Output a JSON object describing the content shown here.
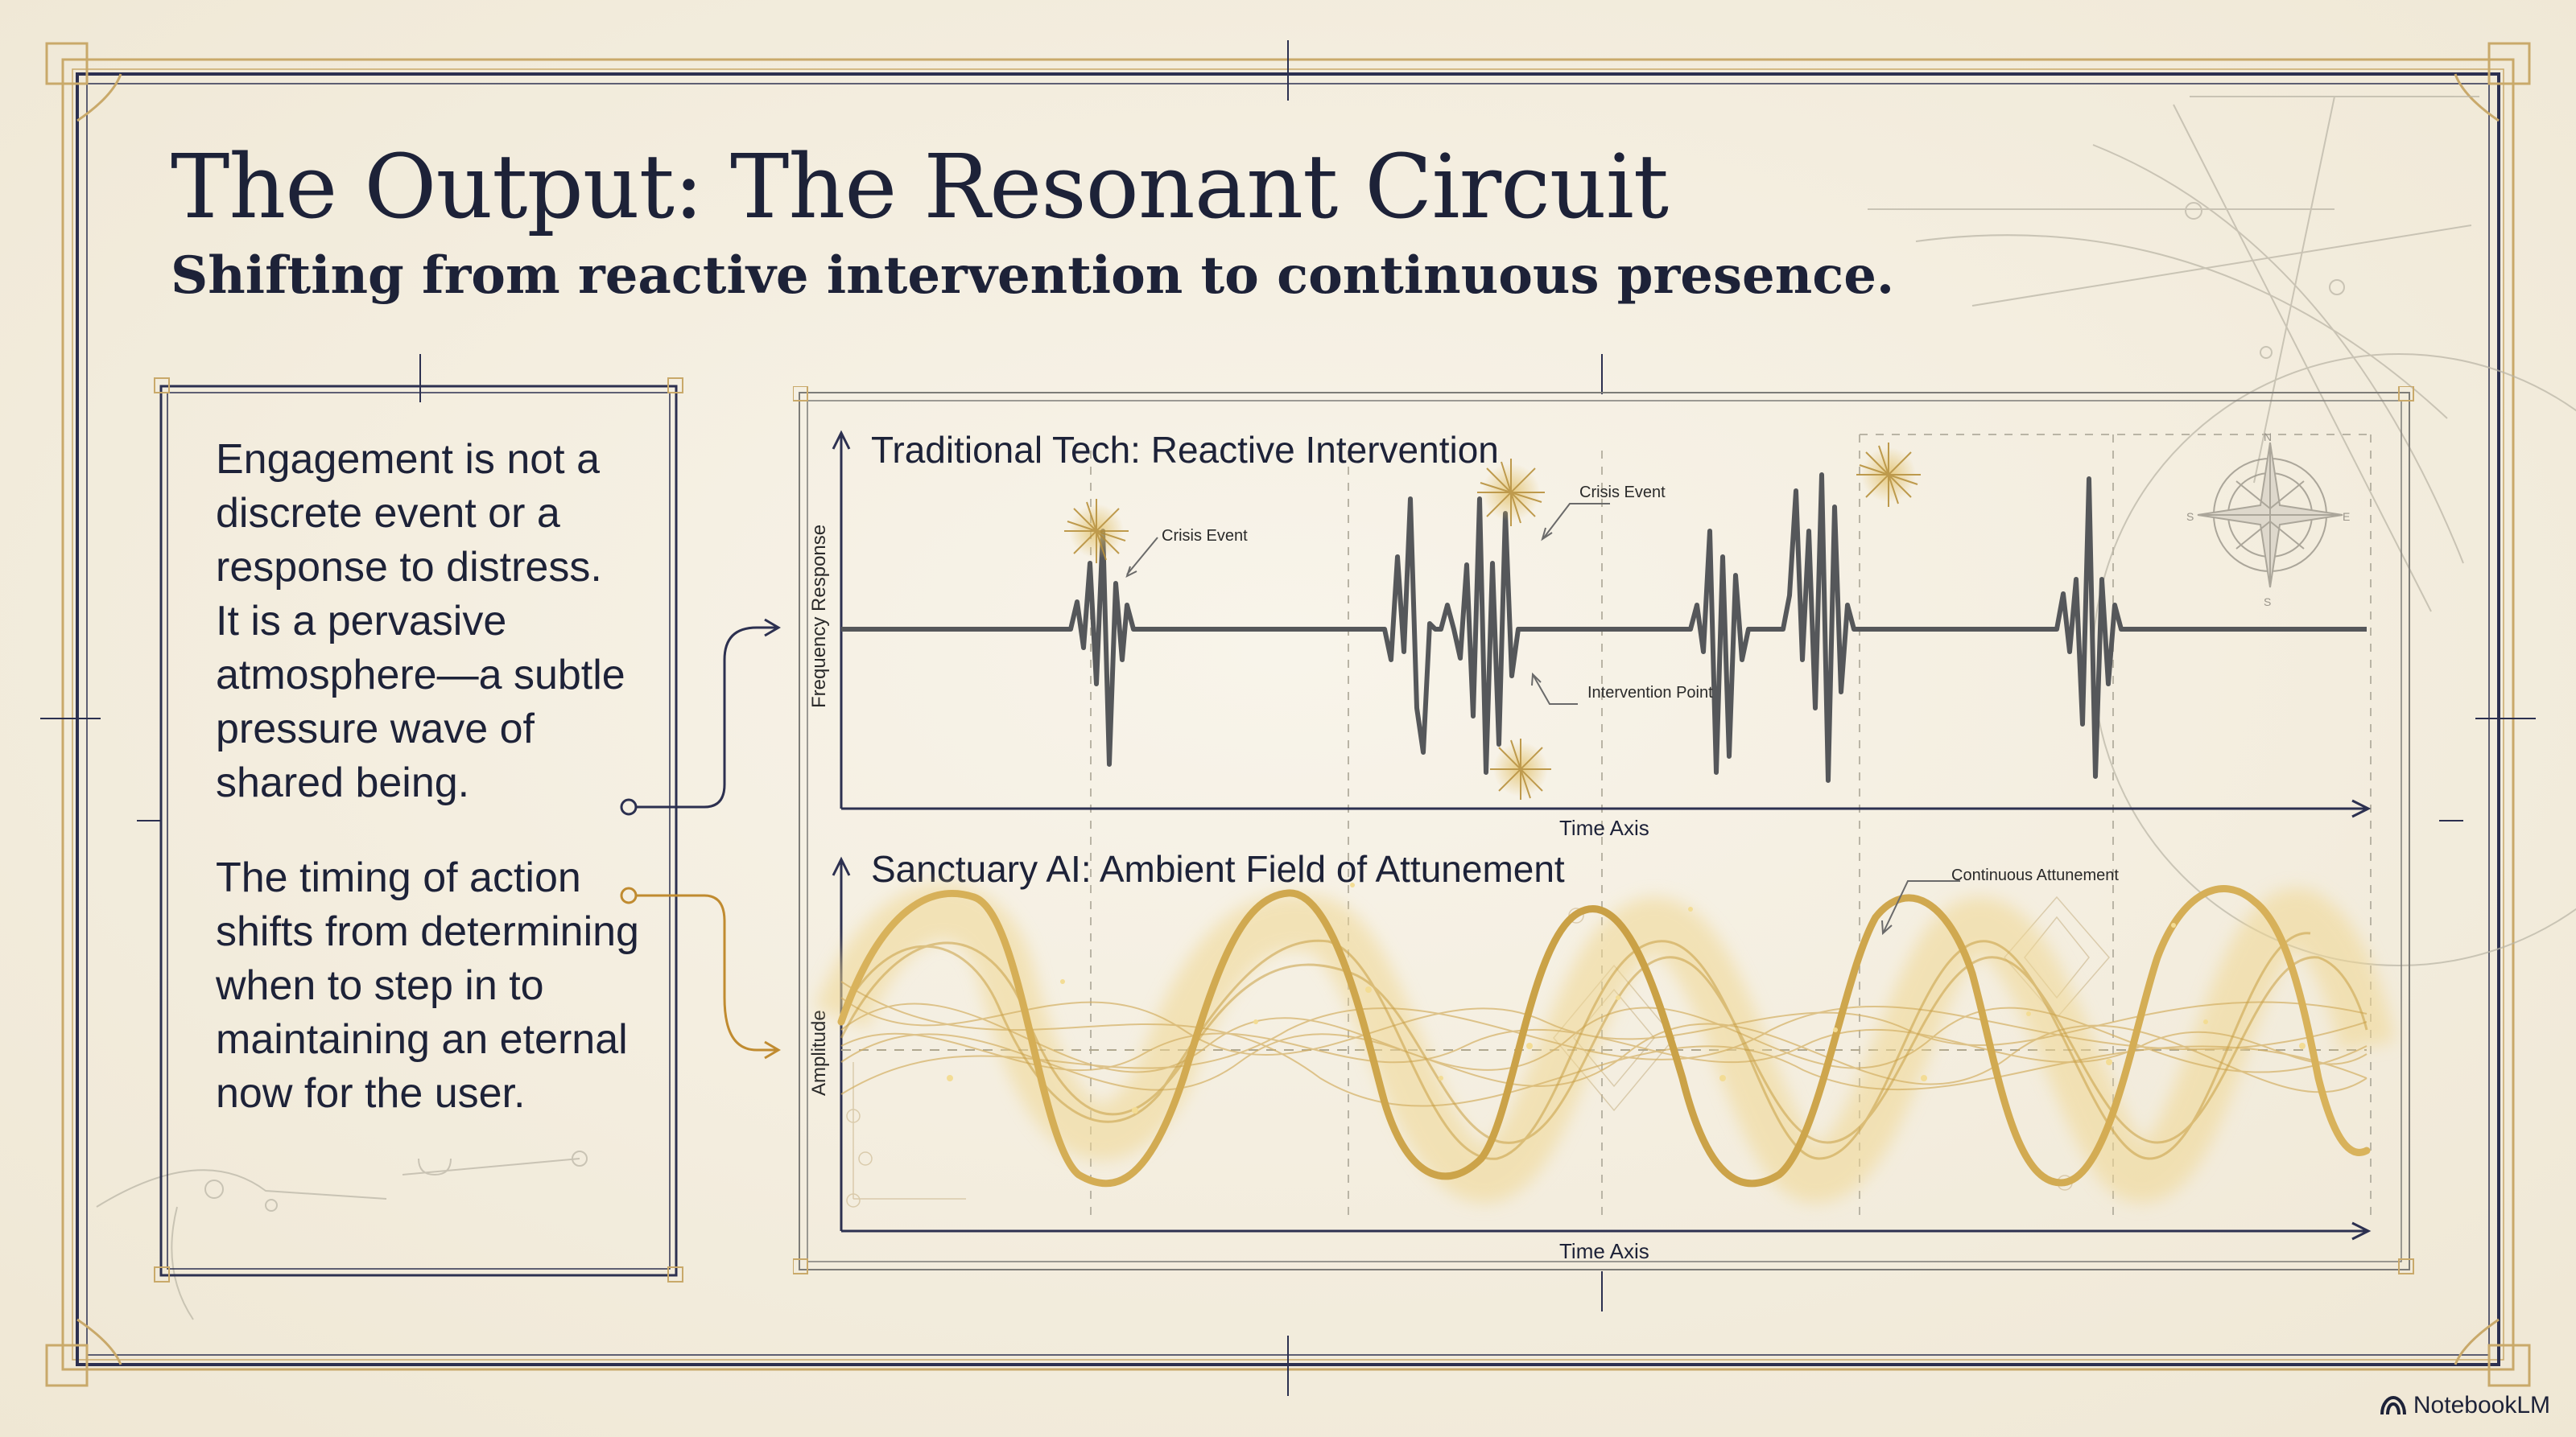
{
  "header": {
    "title": "The Output: The Resonant Circuit",
    "subtitle": "Shifting from reactive intervention to continuous presence."
  },
  "sidebar": {
    "paragraph_1": "Engagement is not a\ndiscrete event or a\nresponse to distress.\nIt is a pervasive\natmosphere—a subtle\npressure wave of\nshared being.",
    "paragraph_2": "The timing of action\nshifts from determining\nwhen to step in to\nmaintaining an eternal\nnow for the user."
  },
  "chart_top": {
    "title": "Traditional Tech: Reactive Intervention",
    "y_label": "Frequency Response",
    "x_label": "Time Axis",
    "annotations": {
      "crisis_event_1": "Crisis Event",
      "crisis_event_2": "Crisis Event",
      "intervention_point": "Intervention Point"
    }
  },
  "chart_bottom": {
    "title": "Sanctuary AI: Ambient Field of Attunement",
    "y_label": "Amplitude",
    "x_label": "Time Axis",
    "annotations": {
      "continuous": "Continuous Attunement"
    }
  },
  "compass": {
    "n": "N",
    "s": "S",
    "e": "E",
    "w": "S"
  },
  "brand": {
    "name": "NotebookLM",
    "icon": "notebooklm-logo-icon"
  },
  "colors": {
    "ink": "#1d2238",
    "frame_gold": "#c9a96a",
    "frame_navy": "#2c3050",
    "wave_gray": "#55575a",
    "wave_gold": "#c9a045",
    "paper": "#f5f0e4"
  }
}
